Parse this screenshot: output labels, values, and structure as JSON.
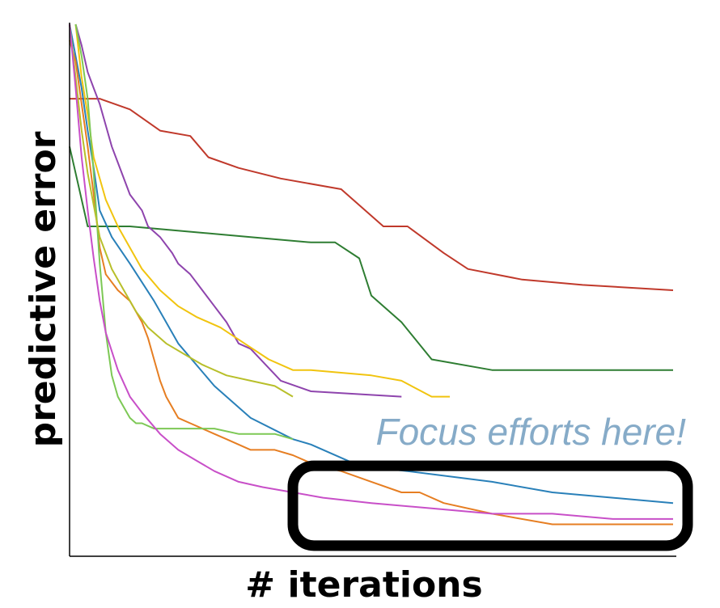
{
  "chart_data": {
    "type": "line",
    "title": "",
    "xlabel": "# iterations",
    "ylabel": "predictive error",
    "xlim": [
      0,
      100
    ],
    "ylim": [
      0,
      100
    ],
    "grid": false,
    "legend": "none",
    "annotation": {
      "text": "Focus efforts here!",
      "color": "#86abc8",
      "highlight_box_color": "#000000",
      "highlight_x_range": [
        37,
        100
      ],
      "highlight_y_range": [
        2,
        17
      ]
    },
    "series": [
      {
        "color": "#c0392b",
        "points": [
          [
            0,
            86
          ],
          [
            5,
            86
          ],
          [
            10,
            84
          ],
          [
            15,
            80
          ],
          [
            20,
            79
          ],
          [
            23,
            75
          ],
          [
            28,
            73
          ],
          [
            35,
            71
          ],
          [
            45,
            69
          ],
          [
            52,
            62
          ],
          [
            56,
            62
          ],
          [
            62,
            57
          ],
          [
            66,
            54
          ],
          [
            75,
            52
          ],
          [
            85,
            51
          ],
          [
            100,
            50
          ]
        ]
      },
      {
        "color": "#2e7d32",
        "points": [
          [
            0,
            77
          ],
          [
            1,
            72
          ],
          [
            3,
            62
          ],
          [
            10,
            62
          ],
          [
            20,
            61
          ],
          [
            30,
            60
          ],
          [
            40,
            59
          ],
          [
            44,
            59
          ],
          [
            48,
            56
          ],
          [
            50,
            49
          ],
          [
            55,
            44
          ],
          [
            60,
            37
          ],
          [
            70,
            35
          ],
          [
            100,
            35
          ]
        ]
      },
      {
        "color": "#8e44ad",
        "points": [
          [
            1,
            100
          ],
          [
            2,
            96
          ],
          [
            3,
            91
          ],
          [
            4,
            88
          ],
          [
            5,
            85
          ],
          [
            7,
            77
          ],
          [
            8,
            74
          ],
          [
            10,
            68
          ],
          [
            12,
            65
          ],
          [
            13,
            62
          ],
          [
            15,
            60
          ],
          [
            17,
            57
          ],
          [
            18,
            55
          ],
          [
            20,
            53
          ],
          [
            22,
            50
          ],
          [
            24,
            47
          ],
          [
            26,
            44
          ],
          [
            28,
            40
          ],
          [
            30,
            39
          ],
          [
            35,
            33
          ],
          [
            40,
            31
          ],
          [
            55,
            30
          ]
        ]
      },
      {
        "color": "#f1c40f",
        "points": [
          [
            1,
            100
          ],
          [
            2,
            90
          ],
          [
            3,
            83
          ],
          [
            4,
            75
          ],
          [
            6,
            67
          ],
          [
            8,
            62
          ],
          [
            10,
            58
          ],
          [
            12,
            54
          ],
          [
            15,
            50
          ],
          [
            18,
            47
          ],
          [
            21,
            45
          ],
          [
            25,
            43
          ],
          [
            29,
            40
          ],
          [
            33,
            37
          ],
          [
            37,
            35
          ],
          [
            40,
            35
          ],
          [
            50,
            34
          ],
          [
            55,
            33
          ],
          [
            60,
            30
          ],
          [
            63,
            30
          ]
        ]
      },
      {
        "color": "#2980b9",
        "points": [
          [
            0,
            100
          ],
          [
            1,
            94
          ],
          [
            2,
            88
          ],
          [
            3,
            80
          ],
          [
            4,
            73
          ],
          [
            5,
            65
          ],
          [
            7,
            60
          ],
          [
            10,
            55
          ],
          [
            14,
            48
          ],
          [
            18,
            40
          ],
          [
            24,
            32
          ],
          [
            30,
            26
          ],
          [
            37,
            22
          ],
          [
            40,
            21
          ],
          [
            48,
            17
          ],
          [
            56,
            16
          ],
          [
            70,
            14
          ],
          [
            80,
            12
          ],
          [
            90,
            11
          ],
          [
            100,
            10
          ]
        ]
      },
      {
        "color": "#e67e22",
        "points": [
          [
            0,
            97
          ],
          [
            1,
            93
          ],
          [
            2,
            85
          ],
          [
            3,
            77
          ],
          [
            4,
            68
          ],
          [
            5,
            58
          ],
          [
            6,
            53
          ],
          [
            8,
            50
          ],
          [
            10,
            48
          ],
          [
            12,
            44
          ],
          [
            13,
            41
          ],
          [
            14,
            37
          ],
          [
            15,
            33
          ],
          [
            16,
            30
          ],
          [
            18,
            26
          ],
          [
            20,
            25
          ],
          [
            22,
            24
          ],
          [
            24,
            23
          ],
          [
            26,
            22
          ],
          [
            28,
            21
          ],
          [
            30,
            20
          ],
          [
            32,
            20
          ],
          [
            34,
            20
          ],
          [
            37,
            19
          ],
          [
            41,
            17
          ],
          [
            45,
            16
          ],
          [
            50,
            14
          ],
          [
            55,
            12
          ],
          [
            58,
            12
          ],
          [
            62,
            10
          ],
          [
            70,
            8
          ],
          [
            80,
            6
          ],
          [
            90,
            6
          ],
          [
            100,
            6
          ]
        ]
      },
      {
        "color": "#7dc855",
        "points": [
          [
            1,
            100
          ],
          [
            2,
            94
          ],
          [
            3,
            86
          ],
          [
            4,
            72
          ],
          [
            5,
            55
          ],
          [
            6,
            42
          ],
          [
            7,
            34
          ],
          [
            8,
            30
          ],
          [
            9,
            28
          ],
          [
            10,
            26
          ],
          [
            11,
            25
          ],
          [
            12,
            25
          ],
          [
            14,
            24
          ],
          [
            17,
            24
          ],
          [
            20,
            24
          ],
          [
            24,
            24
          ],
          [
            28,
            23
          ],
          [
            31,
            23
          ],
          [
            34,
            23
          ],
          [
            37,
            22
          ]
        ]
      },
      {
        "color": "#b8bf2a",
        "points": [
          [
            0,
            100
          ],
          [
            1,
            90
          ],
          [
            2,
            80
          ],
          [
            3,
            72
          ],
          [
            4,
            66
          ],
          [
            5,
            60
          ],
          [
            7,
            54
          ],
          [
            9,
            50
          ],
          [
            11,
            46
          ],
          [
            13,
            43
          ],
          [
            16,
            40
          ],
          [
            19,
            38
          ],
          [
            22,
            36
          ],
          [
            26,
            34
          ],
          [
            30,
            33
          ],
          [
            34,
            32
          ],
          [
            37,
            30
          ]
        ]
      },
      {
        "color": "#c84fc8",
        "points": [
          [
            0,
            100
          ],
          [
            1,
            88
          ],
          [
            2,
            75
          ],
          [
            3,
            65
          ],
          [
            4,
            56
          ],
          [
            5,
            48
          ],
          [
            6,
            42
          ],
          [
            8,
            35
          ],
          [
            10,
            30
          ],
          [
            12,
            27
          ],
          [
            15,
            23
          ],
          [
            18,
            20
          ],
          [
            21,
            18
          ],
          [
            24,
            16
          ],
          [
            28,
            14
          ],
          [
            32,
            13
          ],
          [
            37,
            12
          ],
          [
            42,
            11
          ],
          [
            50,
            10
          ],
          [
            60,
            9
          ],
          [
            70,
            8
          ],
          [
            80,
            8
          ],
          [
            90,
            7
          ],
          [
            100,
            7
          ]
        ]
      }
    ]
  }
}
